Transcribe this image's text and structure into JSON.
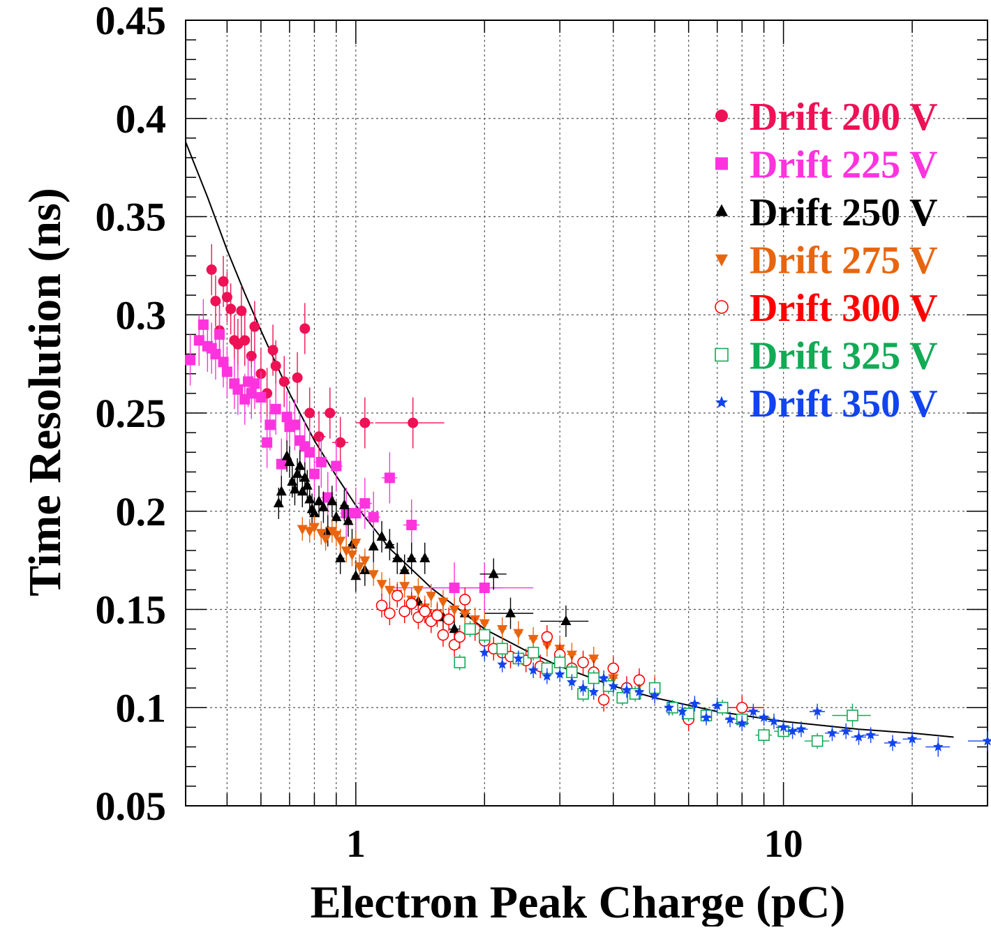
{
  "chart_data": {
    "type": "scatter",
    "title": "",
    "xlabel": "Electron Peak Charge (pC)",
    "ylabel": "Time Resolution (ns)",
    "xscale": "log",
    "xlim": [
      0.4,
      30
    ],
    "ylim": [
      0.05,
      0.45
    ],
    "grid": true,
    "legend_position": "top-right",
    "x_tick_labels": [
      "1",
      "10"
    ],
    "y_tick_labels": [
      "0.05",
      "0.1",
      "0.15",
      "0.2",
      "0.25",
      "0.3",
      "0.35",
      "0.4",
      "0.45"
    ],
    "fit_curve": {
      "x": [
        0.4,
        0.45,
        0.5,
        0.55,
        0.6,
        0.7,
        0.8,
        0.9,
        1.0,
        1.2,
        1.5,
        2.0,
        2.5,
        3.0,
        4.0,
        5.0,
        7.0,
        10.0,
        15.0,
        20.0,
        25.0
      ],
      "y": [
        0.388,
        0.36,
        0.333,
        0.311,
        0.292,
        0.26,
        0.236,
        0.218,
        0.203,
        0.181,
        0.161,
        0.14,
        0.129,
        0.121,
        0.111,
        0.105,
        0.098,
        0.093,
        0.089,
        0.087,
        0.085
      ]
    },
    "series": [
      {
        "name": "Drift 200 V",
        "color": "#ee1155",
        "marker": "circle",
        "x": [
          0.46,
          0.47,
          0.48,
          0.49,
          0.5,
          0.51,
          0.52,
          0.53,
          0.54,
          0.55,
          0.57,
          0.58,
          0.6,
          0.62,
          0.64,
          0.65,
          0.68,
          0.73,
          0.76,
          0.78,
          0.82,
          0.87,
          0.92,
          1.05,
          1.36
        ],
        "y": [
          0.323,
          0.307,
          0.292,
          0.317,
          0.309,
          0.303,
          0.287,
          0.285,
          0.302,
          0.287,
          0.279,
          0.294,
          0.27,
          0.26,
          0.282,
          0.274,
          0.266,
          0.268,
          0.293,
          0.25,
          0.238,
          0.25,
          0.235,
          0.245,
          0.245
        ],
        "x_err": [
          0.01,
          0.01,
          0.01,
          0.01,
          0.01,
          0.01,
          0.01,
          0.01,
          0.01,
          0.01,
          0.01,
          0.01,
          0.01,
          0.01,
          0.01,
          0.01,
          0.01,
          0.01,
          0.01,
          0.02,
          0.03,
          0.03,
          0.04,
          0.05,
          0.25
        ],
        "y_err": [
          0.013,
          0.013,
          0.013,
          0.013,
          0.013,
          0.013,
          0.013,
          0.013,
          0.013,
          0.013,
          0.013,
          0.013,
          0.013,
          0.013,
          0.013,
          0.013,
          0.013,
          0.013,
          0.013,
          0.013,
          0.013,
          0.013,
          0.013,
          0.013,
          0.013
        ]
      },
      {
        "name": "Drift 225 V",
        "color": "#ff33dd",
        "marker": "square",
        "x": [
          0.41,
          0.43,
          0.44,
          0.45,
          0.46,
          0.47,
          0.48,
          0.49,
          0.5,
          0.52,
          0.53,
          0.55,
          0.56,
          0.57,
          0.58,
          0.6,
          0.62,
          0.63,
          0.65,
          0.67,
          0.69,
          0.7,
          0.72,
          0.74,
          0.76,
          0.78,
          0.8,
          0.83,
          0.86,
          0.9,
          0.95,
          1.0,
          1.05,
          1.1,
          1.2,
          1.35,
          1.7,
          2.0
        ],
        "y": [
          0.277,
          0.287,
          0.295,
          0.284,
          0.283,
          0.28,
          0.29,
          0.276,
          0.271,
          0.265,
          0.262,
          0.257,
          0.266,
          0.26,
          0.265,
          0.258,
          0.235,
          0.244,
          0.252,
          0.224,
          0.248,
          0.243,
          0.244,
          0.236,
          0.233,
          0.23,
          0.219,
          0.225,
          0.207,
          0.223,
          0.199,
          0.199,
          0.204,
          0.197,
          0.217,
          0.193,
          0.161,
          0.161
        ],
        "x_err": [
          0.01,
          0.01,
          0.01,
          0.01,
          0.01,
          0.01,
          0.01,
          0.01,
          0.01,
          0.01,
          0.01,
          0.01,
          0.01,
          0.01,
          0.01,
          0.01,
          0.01,
          0.01,
          0.01,
          0.01,
          0.01,
          0.01,
          0.02,
          0.02,
          0.02,
          0.02,
          0.02,
          0.03,
          0.03,
          0.03,
          0.03,
          0.04,
          0.04,
          0.04,
          0.05,
          0.06,
          0.5,
          0.6
        ],
        "y_err": [
          0.013,
          0.013,
          0.013,
          0.013,
          0.013,
          0.013,
          0.013,
          0.013,
          0.013,
          0.013,
          0.013,
          0.013,
          0.013,
          0.013,
          0.013,
          0.013,
          0.013,
          0.013,
          0.013,
          0.013,
          0.013,
          0.013,
          0.013,
          0.013,
          0.013,
          0.013,
          0.013,
          0.013,
          0.013,
          0.013,
          0.013,
          0.013,
          0.013,
          0.013,
          0.013,
          0.013,
          0.013,
          0.013
        ]
      },
      {
        "name": "Drift 250 V",
        "color": "#000000",
        "marker": "triangle-up",
        "x": [
          0.66,
          0.67,
          0.69,
          0.7,
          0.71,
          0.72,
          0.73,
          0.74,
          0.75,
          0.76,
          0.77,
          0.78,
          0.79,
          0.8,
          0.82,
          0.84,
          0.86,
          0.88,
          0.9,
          0.92,
          0.94,
          0.96,
          0.98,
          1.0,
          1.05,
          1.1,
          1.15,
          1.2,
          1.25,
          1.3,
          1.35,
          1.4,
          1.45,
          1.6,
          1.7,
          1.8,
          2.1,
          2.3,
          3.1
        ],
        "y": [
          0.204,
          0.21,
          0.228,
          0.225,
          0.215,
          0.211,
          0.219,
          0.223,
          0.21,
          0.217,
          0.213,
          0.206,
          0.201,
          0.199,
          0.205,
          0.202,
          0.19,
          0.205,
          0.197,
          0.176,
          0.203,
          0.195,
          0.183,
          0.167,
          0.17,
          0.182,
          0.187,
          0.183,
          0.176,
          0.17,
          0.176,
          0.154,
          0.176,
          0.146,
          0.14,
          0.148,
          0.168,
          0.148,
          0.144
        ],
        "x_err": [
          0.01,
          0.01,
          0.01,
          0.01,
          0.01,
          0.01,
          0.01,
          0.01,
          0.01,
          0.01,
          0.01,
          0.01,
          0.01,
          0.01,
          0.01,
          0.01,
          0.01,
          0.01,
          0.02,
          0.02,
          0.02,
          0.02,
          0.02,
          0.02,
          0.02,
          0.02,
          0.02,
          0.03,
          0.03,
          0.03,
          0.03,
          0.03,
          0.03,
          0.04,
          0.05,
          0.05,
          0.15,
          0.3,
          0.4
        ],
        "y_err": [
          0.008,
          0.008,
          0.008,
          0.008,
          0.008,
          0.008,
          0.008,
          0.008,
          0.008,
          0.008,
          0.008,
          0.008,
          0.008,
          0.008,
          0.008,
          0.008,
          0.008,
          0.008,
          0.008,
          0.008,
          0.008,
          0.008,
          0.008,
          0.008,
          0.008,
          0.008,
          0.008,
          0.008,
          0.008,
          0.008,
          0.008,
          0.008,
          0.008,
          0.008,
          0.008,
          0.008,
          0.008,
          0.008,
          0.008
        ]
      },
      {
        "name": "Drift 275 V",
        "color": "#e8650f",
        "marker": "triangle-down",
        "x": [
          0.75,
          0.78,
          0.8,
          0.83,
          0.85,
          0.88,
          0.9,
          0.92,
          0.95,
          0.98,
          1.0,
          1.02,
          1.05,
          1.1,
          1.15,
          1.2,
          1.25,
          1.3,
          1.35,
          1.4,
          1.45,
          1.5,
          1.55,
          1.6,
          1.7,
          1.8,
          1.9,
          2.0,
          2.2,
          2.4,
          2.6,
          2.8,
          3.0,
          3.2,
          3.6,
          4.0,
          4.6,
          5.0
        ],
        "y": [
          0.191,
          0.19,
          0.192,
          0.189,
          0.186,
          0.19,
          0.188,
          0.185,
          0.18,
          0.178,
          0.184,
          0.172,
          0.175,
          0.168,
          0.163,
          0.16,
          0.158,
          0.162,
          0.155,
          0.16,
          0.151,
          0.157,
          0.148,
          0.154,
          0.15,
          0.148,
          0.145,
          0.143,
          0.14,
          0.138,
          0.135,
          0.132,
          0.13,
          0.127,
          0.125,
          0.115,
          0.112,
          0.11
        ],
        "x_err": [
          0.01,
          0.01,
          0.01,
          0.01,
          0.01,
          0.01,
          0.01,
          0.01,
          0.01,
          0.01,
          0.02,
          0.02,
          0.02,
          0.02,
          0.02,
          0.02,
          0.02,
          0.02,
          0.02,
          0.03,
          0.03,
          0.03,
          0.03,
          0.03,
          0.03,
          0.04,
          0.04,
          0.04,
          0.05,
          0.05,
          0.06,
          0.06,
          0.07,
          0.08,
          0.09,
          0.1,
          0.1,
          0.1
        ],
        "y_err": [
          0.006,
          0.006,
          0.006,
          0.006,
          0.006,
          0.006,
          0.006,
          0.006,
          0.006,
          0.006,
          0.006,
          0.006,
          0.006,
          0.006,
          0.006,
          0.006,
          0.006,
          0.006,
          0.006,
          0.006,
          0.006,
          0.006,
          0.006,
          0.006,
          0.006,
          0.006,
          0.006,
          0.006,
          0.006,
          0.006,
          0.006,
          0.006,
          0.006,
          0.006,
          0.006,
          0.006,
          0.006,
          0.006
        ]
      },
      {
        "name": "Drift 300 V",
        "color": "#ff0000",
        "marker": "circle-open",
        "x": [
          1.15,
          1.2,
          1.25,
          1.3,
          1.35,
          1.4,
          1.45,
          1.5,
          1.55,
          1.6,
          1.65,
          1.7,
          1.75,
          1.8,
          1.9,
          2.0,
          2.1,
          2.2,
          2.3,
          2.5,
          2.7,
          2.8,
          3.0,
          3.2,
          3.4,
          3.6,
          3.8,
          4.0,
          4.3,
          4.6,
          5.0,
          6.0,
          8.0
        ],
        "y": [
          0.152,
          0.148,
          0.157,
          0.149,
          0.153,
          0.146,
          0.149,
          0.144,
          0.147,
          0.137,
          0.145,
          0.132,
          0.136,
          0.155,
          0.14,
          0.134,
          0.13,
          0.128,
          0.126,
          0.124,
          0.121,
          0.136,
          0.127,
          0.12,
          0.123,
          0.118,
          0.104,
          0.12,
          0.11,
          0.114,
          0.109,
          0.094,
          0.1
        ],
        "x_err": [
          0.02,
          0.02,
          0.02,
          0.02,
          0.02,
          0.02,
          0.02,
          0.02,
          0.02,
          0.03,
          0.03,
          0.03,
          0.03,
          0.03,
          0.03,
          0.04,
          0.04,
          0.04,
          0.04,
          0.05,
          0.05,
          0.05,
          0.06,
          0.06,
          0.07,
          0.07,
          0.08,
          0.08,
          0.09,
          0.1,
          0.1,
          0.2,
          1.0
        ],
        "y_err": [
          0.006,
          0.006,
          0.006,
          0.006,
          0.006,
          0.006,
          0.006,
          0.006,
          0.006,
          0.006,
          0.006,
          0.006,
          0.006,
          0.006,
          0.006,
          0.006,
          0.006,
          0.006,
          0.006,
          0.006,
          0.006,
          0.006,
          0.006,
          0.006,
          0.006,
          0.006,
          0.006,
          0.006,
          0.006,
          0.006,
          0.006,
          0.006,
          0.006
        ]
      },
      {
        "name": "Drift 325 V",
        "color": "#11aa55",
        "marker": "square-open",
        "x": [
          1.75,
          1.85,
          2.0,
          2.2,
          2.4,
          2.6,
          2.8,
          3.0,
          3.2,
          3.4,
          3.6,
          3.9,
          4.2,
          4.5,
          5.0,
          5.5,
          6.0,
          6.6,
          7.2,
          8.0,
          9.0,
          10.0,
          12.0,
          14.5
        ],
        "y": [
          0.123,
          0.14,
          0.137,
          0.13,
          0.125,
          0.128,
          0.12,
          0.123,
          0.118,
          0.107,
          0.115,
          0.111,
          0.105,
          0.107,
          0.11,
          0.1,
          0.097,
          0.096,
          0.1,
          0.094,
          0.086,
          0.088,
          0.083,
          0.096
        ],
        "x_err": [
          0.03,
          0.03,
          0.04,
          0.04,
          0.05,
          0.05,
          0.05,
          0.06,
          0.06,
          0.07,
          0.07,
          0.08,
          0.08,
          0.09,
          0.1,
          0.1,
          0.2,
          0.2,
          0.2,
          0.3,
          0.4,
          0.5,
          0.8,
          1.5
        ],
        "y_err": [
          0.004,
          0.004,
          0.004,
          0.004,
          0.004,
          0.004,
          0.004,
          0.004,
          0.004,
          0.004,
          0.004,
          0.004,
          0.004,
          0.004,
          0.004,
          0.004,
          0.004,
          0.004,
          0.004,
          0.004,
          0.004,
          0.004,
          0.004,
          0.006
        ]
      },
      {
        "name": "Drift 350 V",
        "color": "#1144ee",
        "marker": "star",
        "x": [
          2.0,
          2.2,
          2.4,
          2.6,
          2.8,
          3.0,
          3.2,
          3.4,
          3.6,
          3.8,
          4.0,
          4.3,
          4.6,
          5.0,
          5.4,
          5.8,
          6.2,
          6.6,
          7.0,
          7.5,
          8.0,
          8.5,
          9.0,
          9.5,
          10.0,
          10.5,
          11.0,
          12.0,
          13.0,
          14.0,
          15.0,
          16.0,
          18.0,
          20.0,
          23.0,
          30.0
        ],
        "y": [
          0.128,
          0.122,
          0.125,
          0.119,
          0.116,
          0.117,
          0.113,
          0.11,
          0.108,
          0.115,
          0.111,
          0.109,
          0.108,
          0.106,
          0.1,
          0.098,
          0.102,
          0.095,
          0.101,
          0.094,
          0.092,
          0.098,
          0.095,
          0.093,
          0.09,
          0.088,
          0.089,
          0.098,
          0.087,
          0.088,
          0.085,
          0.086,
          0.082,
          0.084,
          0.08,
          0.083
        ],
        "x_err": [
          0.03,
          0.04,
          0.04,
          0.05,
          0.05,
          0.06,
          0.06,
          0.07,
          0.07,
          0.08,
          0.08,
          0.09,
          0.1,
          0.1,
          0.1,
          0.1,
          0.2,
          0.2,
          0.2,
          0.2,
          0.3,
          0.3,
          0.3,
          0.3,
          0.4,
          0.4,
          0.4,
          0.5,
          0.5,
          0.5,
          0.6,
          0.7,
          0.8,
          1.0,
          1.5,
          3.0
        ],
        "y_err": [
          0.004,
          0.004,
          0.004,
          0.004,
          0.004,
          0.004,
          0.004,
          0.004,
          0.004,
          0.004,
          0.004,
          0.004,
          0.004,
          0.004,
          0.004,
          0.004,
          0.004,
          0.004,
          0.004,
          0.004,
          0.004,
          0.004,
          0.004,
          0.004,
          0.004,
          0.004,
          0.004,
          0.004,
          0.004,
          0.004,
          0.004,
          0.004,
          0.004,
          0.004,
          0.005,
          0.005
        ]
      }
    ]
  }
}
